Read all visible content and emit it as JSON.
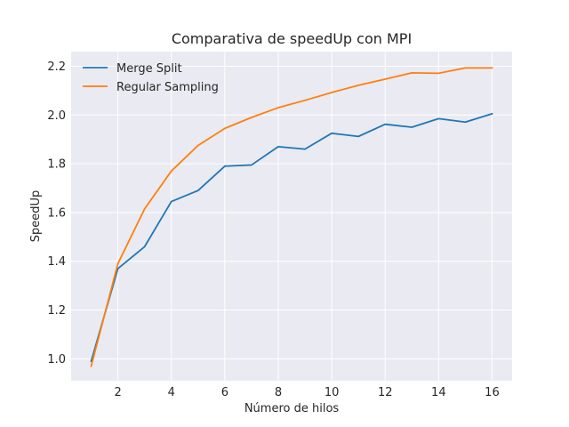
{
  "chart_data": {
    "type": "line",
    "title": "Comparativa de speedUp con MPI",
    "xlabel": "Número de hilos",
    "ylabel": "SpeedUp",
    "xlim": [
      0.25,
      16.75
    ],
    "ylim": [
      0.91,
      2.26
    ],
    "xticks": [
      2,
      4,
      6,
      8,
      10,
      12,
      14,
      16
    ],
    "yticks": [
      1.0,
      1.2,
      1.4,
      1.6,
      1.8,
      2.0,
      2.2
    ],
    "ytick_labels": [
      "1.0",
      "1.2",
      "1.4",
      "1.6",
      "1.8",
      "2.0",
      "2.2"
    ],
    "grid": true,
    "legend_position": "top-left",
    "x": [
      1,
      2,
      3,
      4,
      5,
      6,
      7,
      8,
      9,
      10,
      11,
      12,
      13,
      14,
      15,
      16
    ],
    "series": [
      {
        "name": "Merge Split",
        "color": "#1f77b4",
        "values": [
          0.99,
          1.37,
          1.46,
          1.645,
          1.69,
          1.79,
          1.795,
          1.87,
          1.86,
          1.925,
          1.912,
          1.962,
          1.95,
          1.985,
          1.971,
          2.005
        ]
      },
      {
        "name": "Regular Sampling",
        "color": "#ff7f0e",
        "values": [
          0.97,
          1.39,
          1.615,
          1.77,
          1.875,
          1.945,
          1.99,
          2.03,
          2.06,
          2.092,
          2.122,
          2.147,
          2.173,
          2.171,
          2.193,
          2.193
        ]
      }
    ]
  }
}
